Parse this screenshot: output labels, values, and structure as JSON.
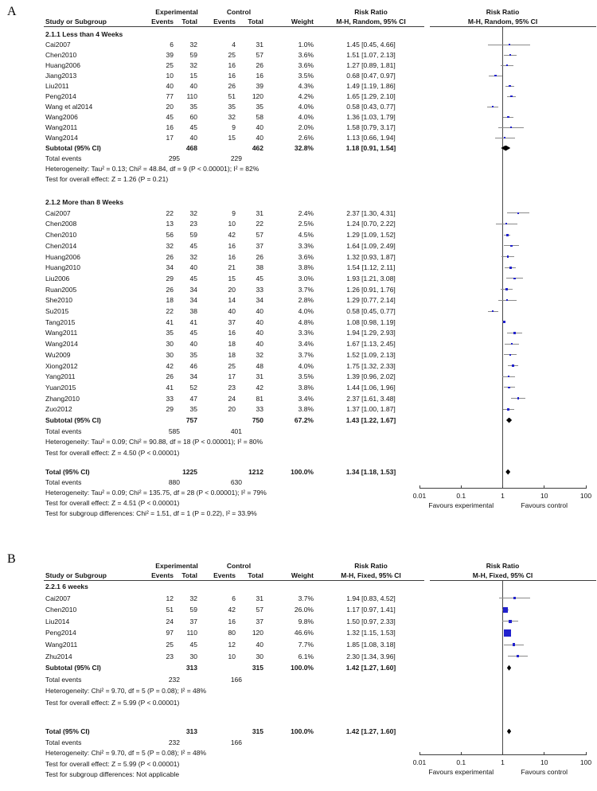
{
  "colors": {
    "square": "#2121ce",
    "ci_line": "#8a8a8a",
    "diamond": "#000000",
    "axis": "#3d3d3d",
    "text": "#141414"
  },
  "chart_data": [
    {
      "type": "forest",
      "letter": "A",
      "group_headers": {
        "experimental": "Experimental",
        "control": "Control",
        "effect": "Risk Ratio"
      },
      "column_headers": {
        "study": "Study or Subgroup",
        "events": "Events",
        "total": "Total",
        "weight": "Weight",
        "method": "M-H, Random, 95% CI"
      },
      "subgroups": [
        {
          "title": "2.1.1 Less than 4 Weeks",
          "studies": [
            {
              "name": "Cai2007",
              "ev_e": "6",
              "tot_e": "32",
              "ev_c": "4",
              "tot_c": "31",
              "weight": "1.0%",
              "w": 1.0,
              "rr": 1.45,
              "lo": 0.45,
              "hi": 4.66,
              "ci_text": "1.45 [0.45, 4.66]"
            },
            {
              "name": "Chen2010",
              "ev_e": "39",
              "tot_e": "59",
              "ev_c": "25",
              "tot_c": "57",
              "weight": "3.6%",
              "w": 3.6,
              "rr": 1.51,
              "lo": 1.07,
              "hi": 2.13,
              "ci_text": "1.51 [1.07, 2.13]"
            },
            {
              "name": "Huang2006",
              "ev_e": "25",
              "tot_e": "32",
              "ev_c": "16",
              "tot_c": "26",
              "weight": "3.6%",
              "w": 3.6,
              "rr": 1.27,
              "lo": 0.89,
              "hi": 1.81,
              "ci_text": "1.27 [0.89, 1.81]"
            },
            {
              "name": "Jiang2013",
              "ev_e": "10",
              "tot_e": "15",
              "ev_c": "16",
              "tot_c": "16",
              "weight": "3.5%",
              "w": 3.5,
              "rr": 0.68,
              "lo": 0.47,
              "hi": 0.97,
              "ci_text": "0.68 [0.47, 0.97]"
            },
            {
              "name": "Liu2011",
              "ev_e": "40",
              "tot_e": "40",
              "ev_c": "26",
              "tot_c": "39",
              "weight": "4.3%",
              "w": 4.3,
              "rr": 1.49,
              "lo": 1.19,
              "hi": 1.86,
              "ci_text": "1.49 [1.19, 1.86]"
            },
            {
              "name": "Peng2014",
              "ev_e": "77",
              "tot_e": "110",
              "ev_c": "51",
              "tot_c": "120",
              "weight": "4.2%",
              "w": 4.2,
              "rr": 1.65,
              "lo": 1.29,
              "hi": 2.1,
              "ci_text": "1.65 [1.29, 2.10]"
            },
            {
              "name": "Wang et al2014",
              "ev_e": "20",
              "tot_e": "35",
              "ev_c": "35",
              "tot_c": "35",
              "weight": "4.0%",
              "w": 4.0,
              "rr": 0.58,
              "lo": 0.43,
              "hi": 0.77,
              "ci_text": "0.58 [0.43, 0.77]"
            },
            {
              "name": "Wang2006",
              "ev_e": "45",
              "tot_e": "60",
              "ev_c": "32",
              "tot_c": "58",
              "weight": "4.0%",
              "w": 4.0,
              "rr": 1.36,
              "lo": 1.03,
              "hi": 1.79,
              "ci_text": "1.36 [1.03, 1.79]"
            },
            {
              "name": "Wang2011",
              "ev_e": "16",
              "tot_e": "45",
              "ev_c": "9",
              "tot_c": "40",
              "weight": "2.0%",
              "w": 2.0,
              "rr": 1.58,
              "lo": 0.79,
              "hi": 3.17,
              "ci_text": "1.58 [0.79, 3.17]"
            },
            {
              "name": "Wang2014",
              "ev_e": "17",
              "tot_e": "40",
              "ev_c": "15",
              "tot_c": "40",
              "weight": "2.6%",
              "w": 2.6,
              "rr": 1.13,
              "lo": 0.66,
              "hi": 1.94,
              "ci_text": "1.13 [0.66, 1.94]"
            }
          ],
          "subtotal": {
            "label": "Subtotal (95% CI)",
            "tot_e": "468",
            "tot_c": "462",
            "weight": "32.8%",
            "rr": 1.18,
            "lo": 0.91,
            "hi": 1.54,
            "ci_text": "1.18 [0.91, 1.54]"
          },
          "total_events": {
            "label": "Total events",
            "ev_e": "295",
            "ev_c": "229"
          },
          "footnotes": [
            "Heterogeneity: Tau² = 0.13; Chi² = 48.84, df = 9 (P < 0.00001); I² = 82%",
            "Test for overall effect: Z = 1.26 (P = 0.21)"
          ]
        },
        {
          "title": "2.1.2 More than 8 Weeks",
          "studies": [
            {
              "name": "Cai2007",
              "ev_e": "22",
              "tot_e": "32",
              "ev_c": "9",
              "tot_c": "31",
              "weight": "2.4%",
              "w": 2.4,
              "rr": 2.37,
              "lo": 1.3,
              "hi": 4.31,
              "ci_text": "2.37 [1.30, 4.31]"
            },
            {
              "name": "Chen2008",
              "ev_e": "13",
              "tot_e": "23",
              "ev_c": "10",
              "tot_c": "22",
              "weight": "2.5%",
              "w": 2.5,
              "rr": 1.24,
              "lo": 0.7,
              "hi": 2.22,
              "ci_text": "1.24 [0.70, 2.22]"
            },
            {
              "name": "Chen2010",
              "ev_e": "56",
              "tot_e": "59",
              "ev_c": "42",
              "tot_c": "57",
              "weight": "4.5%",
              "w": 4.5,
              "rr": 1.29,
              "lo": 1.09,
              "hi": 1.52,
              "ci_text": "1.29 [1.09, 1.52]"
            },
            {
              "name": "Chen2014",
              "ev_e": "32",
              "tot_e": "45",
              "ev_c": "16",
              "tot_c": "37",
              "weight": "3.3%",
              "w": 3.3,
              "rr": 1.64,
              "lo": 1.09,
              "hi": 2.49,
              "ci_text": "1.64 [1.09, 2.49]"
            },
            {
              "name": "Huang2006",
              "ev_e": "26",
              "tot_e": "32",
              "ev_c": "16",
              "tot_c": "26",
              "weight": "3.6%",
              "w": 3.6,
              "rr": 1.32,
              "lo": 0.93,
              "hi": 1.87,
              "ci_text": "1.32 [0.93, 1.87]"
            },
            {
              "name": "Huang2010",
              "ev_e": "34",
              "tot_e": "40",
              "ev_c": "21",
              "tot_c": "38",
              "weight": "3.8%",
              "w": 3.8,
              "rr": 1.54,
              "lo": 1.12,
              "hi": 2.11,
              "ci_text": "1.54 [1.12, 2.11]"
            },
            {
              "name": "Liu2006",
              "ev_e": "29",
              "tot_e": "45",
              "ev_c": "15",
              "tot_c": "45",
              "weight": "3.0%",
              "w": 3.0,
              "rr": 1.93,
              "lo": 1.21,
              "hi": 3.08,
              "ci_text": "1.93 [1.21, 3.08]"
            },
            {
              "name": "Ruan2005",
              "ev_e": "26",
              "tot_e": "34",
              "ev_c": "20",
              "tot_c": "33",
              "weight": "3.7%",
              "w": 3.7,
              "rr": 1.26,
              "lo": 0.91,
              "hi": 1.76,
              "ci_text": "1.26 [0.91, 1.76]"
            },
            {
              "name": "She2010",
              "ev_e": "18",
              "tot_e": "34",
              "ev_c": "14",
              "tot_c": "34",
              "weight": "2.8%",
              "w": 2.8,
              "rr": 1.29,
              "lo": 0.77,
              "hi": 2.14,
              "ci_text": "1.29 [0.77, 2.14]"
            },
            {
              "name": "Su2015",
              "ev_e": "22",
              "tot_e": "38",
              "ev_c": "40",
              "tot_c": "40",
              "weight": "4.0%",
              "w": 4.0,
              "rr": 0.58,
              "lo": 0.45,
              "hi": 0.77,
              "ci_text": "0.58 [0.45, 0.77]"
            },
            {
              "name": "Tang2015",
              "ev_e": "41",
              "tot_e": "41",
              "ev_c": "37",
              "tot_c": "40",
              "weight": "4.8%",
              "w": 4.8,
              "rr": 1.08,
              "lo": 0.98,
              "hi": 1.19,
              "ci_text": "1.08 [0.98, 1.19]"
            },
            {
              "name": "Wang2011",
              "ev_e": "35",
              "tot_e": "45",
              "ev_c": "16",
              "tot_c": "40",
              "weight": "3.3%",
              "w": 3.3,
              "rr": 1.94,
              "lo": 1.29,
              "hi": 2.93,
              "ci_text": "1.94 [1.29, 2.93]"
            },
            {
              "name": "Wang2014",
              "ev_e": "30",
              "tot_e": "40",
              "ev_c": "18",
              "tot_c": "40",
              "weight": "3.4%",
              "w": 3.4,
              "rr": 1.67,
              "lo": 1.13,
              "hi": 2.45,
              "ci_text": "1.67 [1.13, 2.45]"
            },
            {
              "name": "Wu2009",
              "ev_e": "30",
              "tot_e": "35",
              "ev_c": "18",
              "tot_c": "32",
              "weight": "3.7%",
              "w": 3.7,
              "rr": 1.52,
              "lo": 1.09,
              "hi": 2.13,
              "ci_text": "1.52 [1.09, 2.13]"
            },
            {
              "name": "Xiong2012",
              "ev_e": "42",
              "tot_e": "46",
              "ev_c": "25",
              "tot_c": "48",
              "weight": "4.0%",
              "w": 4.0,
              "rr": 1.75,
              "lo": 1.32,
              "hi": 2.33,
              "ci_text": "1.75 [1.32, 2.33]"
            },
            {
              "name": "Yang2011",
              "ev_e": "26",
              "tot_e": "34",
              "ev_c": "17",
              "tot_c": "31",
              "weight": "3.5%",
              "w": 3.5,
              "rr": 1.39,
              "lo": 0.96,
              "hi": 2.02,
              "ci_text": "1.39 [0.96, 2.02]"
            },
            {
              "name": "Yuan2015",
              "ev_e": "41",
              "tot_e": "52",
              "ev_c": "23",
              "tot_c": "42",
              "weight": "3.8%",
              "w": 3.8,
              "rr": 1.44,
              "lo": 1.06,
              "hi": 1.96,
              "ci_text": "1.44 [1.06, 1.96]"
            },
            {
              "name": "Zhang2010",
              "ev_e": "33",
              "tot_e": "47",
              "ev_c": "24",
              "tot_c": "81",
              "weight": "3.4%",
              "w": 3.4,
              "rr": 2.37,
              "lo": 1.61,
              "hi": 3.48,
              "ci_text": "2.37 [1.61, 3.48]"
            },
            {
              "name": "Zuo2012",
              "ev_e": "29",
              "tot_e": "35",
              "ev_c": "20",
              "tot_c": "33",
              "weight": "3.8%",
              "w": 3.8,
              "rr": 1.37,
              "lo": 1.0,
              "hi": 1.87,
              "ci_text": "1.37 [1.00, 1.87]"
            }
          ],
          "subtotal": {
            "label": "Subtotal (95% CI)",
            "tot_e": "757",
            "tot_c": "750",
            "weight": "67.2%",
            "rr": 1.43,
            "lo": 1.22,
            "hi": 1.67,
            "ci_text": "1.43 [1.22, 1.67]"
          },
          "total_events": {
            "label": "Total events",
            "ev_e": "585",
            "ev_c": "401"
          },
          "footnotes": [
            "Heterogeneity: Tau² = 0.09; Chi² = 90.88, df = 18 (P < 0.00001); I² = 80%",
            "Test for overall effect: Z = 4.50 (P < 0.00001)"
          ]
        }
      ],
      "total": {
        "label": "Total (95% CI)",
        "tot_e": "1225",
        "tot_c": "1212",
        "weight": "100.0%",
        "rr": 1.34,
        "lo": 1.18,
        "hi": 1.53,
        "ci_text": "1.34 [1.18, 1.53]"
      },
      "total_events": {
        "label": "Total events",
        "ev_e": "880",
        "ev_c": "630"
      },
      "footnotes": [
        "Heterogeneity: Tau² = 0.09; Chi² = 135.75, df = 28 (P < 0.00001); I² = 79%",
        "Test for overall effect: Z = 4.51 (P < 0.00001)",
        "Test for subgroup differences: Chi² = 1.51, df = 1 (P = 0.22), I² = 33.9%"
      ],
      "axis": {
        "ticks": [
          0.01,
          0.1,
          1,
          10,
          100
        ],
        "tick_labels": [
          "0.01",
          "0.1",
          "1",
          "10",
          "100"
        ],
        "favours_left": "Favours experimental",
        "favours_right": "Favours control"
      }
    },
    {
      "type": "forest",
      "letter": "B",
      "group_headers": {
        "experimental": "Experimental",
        "control": "Control",
        "effect": "Risk Ratio"
      },
      "column_headers": {
        "study": "Study or Subgroup",
        "events": "Events",
        "total": "Total",
        "weight": "Weight",
        "method": "M-H, Fixed, 95% CI"
      },
      "subgroups": [
        {
          "title": "2.2.1 6 weeks",
          "studies": [
            {
              "name": "Cai2007",
              "ev_e": "12",
              "tot_e": "32",
              "ev_c": "6",
              "tot_c": "31",
              "weight": "3.7%",
              "w": 3.7,
              "rr": 1.94,
              "lo": 0.83,
              "hi": 4.52,
              "ci_text": "1.94 [0.83, 4.52]"
            },
            {
              "name": "Chen2010",
              "ev_e": "51",
              "tot_e": "59",
              "ev_c": "42",
              "tot_c": "57",
              "weight": "26.0%",
              "w": 26.0,
              "rr": 1.17,
              "lo": 0.97,
              "hi": 1.41,
              "ci_text": "1.17 [0.97, 1.41]"
            },
            {
              "name": "Liu2014",
              "ev_e": "24",
              "tot_e": "37",
              "ev_c": "16",
              "tot_c": "37",
              "weight": "9.8%",
              "w": 9.8,
              "rr": 1.5,
              "lo": 0.97,
              "hi": 2.33,
              "ci_text": "1.50 [0.97, 2.33]"
            },
            {
              "name": "Peng2014",
              "ev_e": "97",
              "tot_e": "110",
              "ev_c": "80",
              "tot_c": "120",
              "weight": "46.6%",
              "w": 46.6,
              "rr": 1.32,
              "lo": 1.15,
              "hi": 1.53,
              "ci_text": "1.32 [1.15, 1.53]"
            },
            {
              "name": "Wang2011",
              "ev_e": "25",
              "tot_e": "45",
              "ev_c": "12",
              "tot_c": "40",
              "weight": "7.7%",
              "w": 7.7,
              "rr": 1.85,
              "lo": 1.08,
              "hi": 3.18,
              "ci_text": "1.85 [1.08, 3.18]"
            },
            {
              "name": "Zhu2014",
              "ev_e": "23",
              "tot_e": "30",
              "ev_c": "10",
              "tot_c": "30",
              "weight": "6.1%",
              "w": 6.1,
              "rr": 2.3,
              "lo": 1.34,
              "hi": 3.96,
              "ci_text": "2.30 [1.34, 3.96]"
            }
          ],
          "subtotal": {
            "label": "Subtotal (95% CI)",
            "tot_e": "313",
            "tot_c": "315",
            "weight": "100.0%",
            "rr": 1.42,
            "lo": 1.27,
            "hi": 1.6,
            "ci_text": "1.42 [1.27, 1.60]"
          },
          "total_events": {
            "label": "Total events",
            "ev_e": "232",
            "ev_c": "166"
          },
          "footnotes": [
            "Heterogeneity: Chi² = 9.70, df = 5 (P = 0.08); I² = 48%",
            "Test for overall effect: Z = 5.99 (P < 0.00001)"
          ]
        }
      ],
      "total": {
        "label": "Total (95% CI)",
        "tot_e": "313",
        "tot_c": "315",
        "weight": "100.0%",
        "rr": 1.42,
        "lo": 1.27,
        "hi": 1.6,
        "ci_text": "1.42 [1.27, 1.60]"
      },
      "total_events": {
        "label": "Total events",
        "ev_e": "232",
        "ev_c": "166"
      },
      "footnotes": [
        "Heterogeneity: Chi² = 9.70, df = 5 (P = 0.08); I² = 48%",
        "Test for overall effect: Z = 5.99 (P < 0.00001)",
        "Test for subgroup differences: Not applicable"
      ],
      "axis": {
        "ticks": [
          0.01,
          0.1,
          1,
          10,
          100
        ],
        "tick_labels": [
          "0.01",
          "0.1",
          "1",
          "10",
          "100"
        ],
        "favours_left": "Favours experimental",
        "favours_right": "Favours control"
      }
    }
  ]
}
